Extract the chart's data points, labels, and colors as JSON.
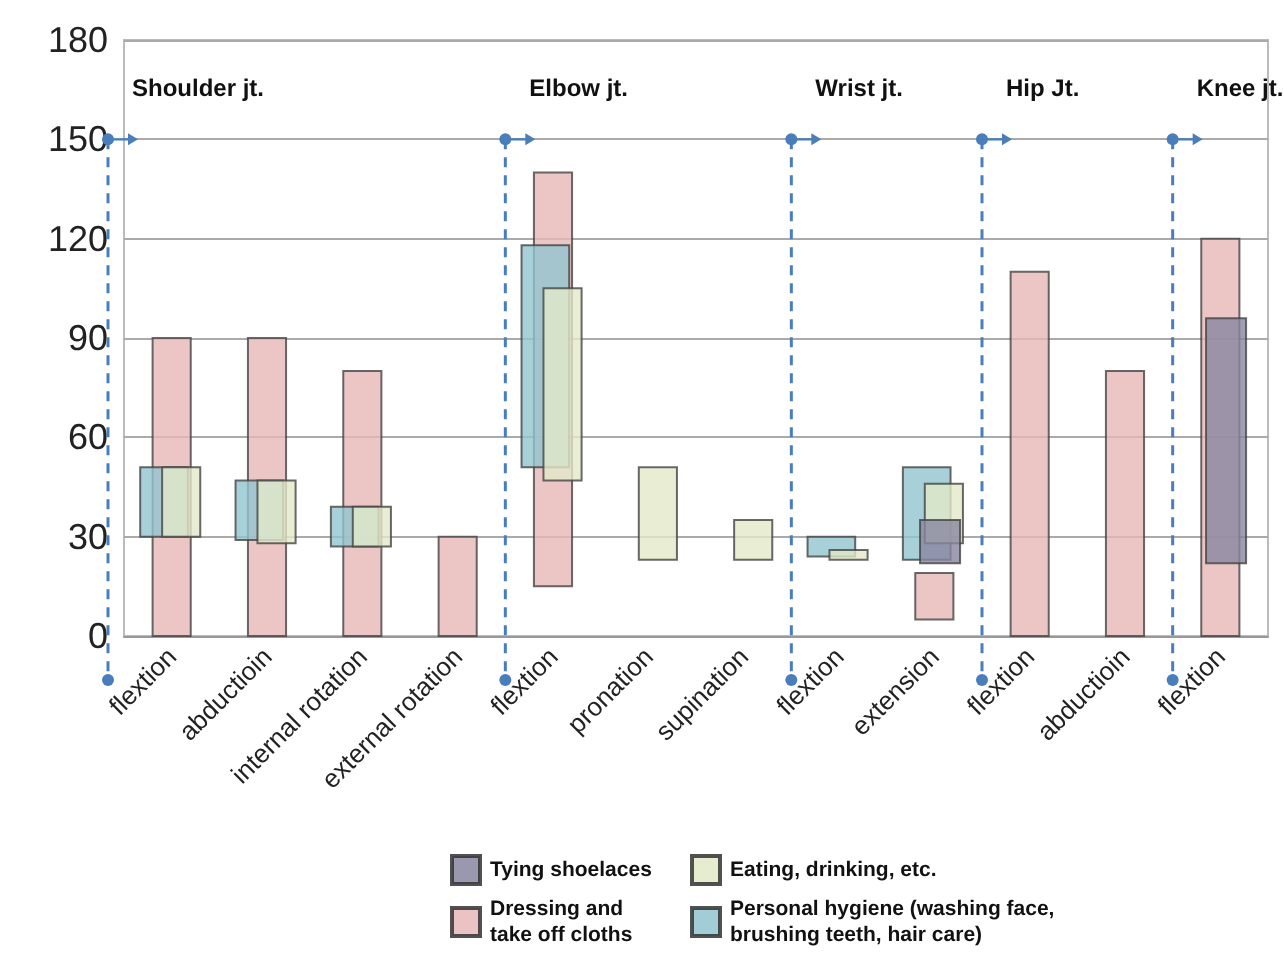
{
  "chart_data": {
    "type": "bar",
    "categories": [
      "flextion",
      "abductioin",
      "internal rotation",
      "external rotation",
      "flextion",
      "pronation",
      "supination",
      "flextion",
      "extension",
      "flextion",
      "abductioin",
      "flextion"
    ],
    "series": [
      {
        "name": "Tying shoelaces",
        "color": "#8886a0",
        "base": [
          null,
          null,
          null,
          null,
          null,
          null,
          null,
          null,
          22,
          null,
          null,
          22
        ],
        "values": [
          null,
          null,
          null,
          null,
          null,
          null,
          null,
          null,
          13,
          null,
          null,
          74
        ]
      },
      {
        "name": "Dressing and take off cloths",
        "color": "#e6b8b7",
        "base": [
          0,
          0,
          0,
          0,
          15,
          null,
          null,
          null,
          5,
          0,
          0,
          0
        ],
        "values": [
          90,
          90,
          80,
          30,
          125,
          null,
          null,
          null,
          14,
          110,
          80,
          120
        ]
      },
      {
        "name": "Eating, drinking, etc.",
        "color": "#e2e9c8",
        "base": [
          30,
          28,
          27,
          null,
          47,
          23,
          23,
          23,
          28,
          null,
          null,
          null
        ],
        "values": [
          21,
          19,
          12,
          null,
          58,
          28,
          12,
          3,
          18,
          null,
          null,
          null
        ]
      },
      {
        "name": "Personal hygiene (washing face, brushing teeth, hair care)",
        "color": "#92c4cf",
        "base": [
          30,
          29,
          27,
          null,
          51,
          null,
          null,
          24,
          23,
          null,
          null,
          null
        ],
        "values": [
          21,
          18,
          12,
          null,
          67,
          null,
          null,
          6,
          28,
          null,
          null,
          null
        ]
      }
    ],
    "ylim": [
      0,
      180
    ],
    "yticks": [
      0,
      30,
      60,
      90,
      120,
      150,
      180
    ],
    "grid": "y",
    "legend": "bottom",
    "annotations": [
      "Shoulder jt.",
      "Elbow jt.",
      "Wrist jt.",
      "Hip Jt.",
      "Knee jt."
    ]
  }
}
